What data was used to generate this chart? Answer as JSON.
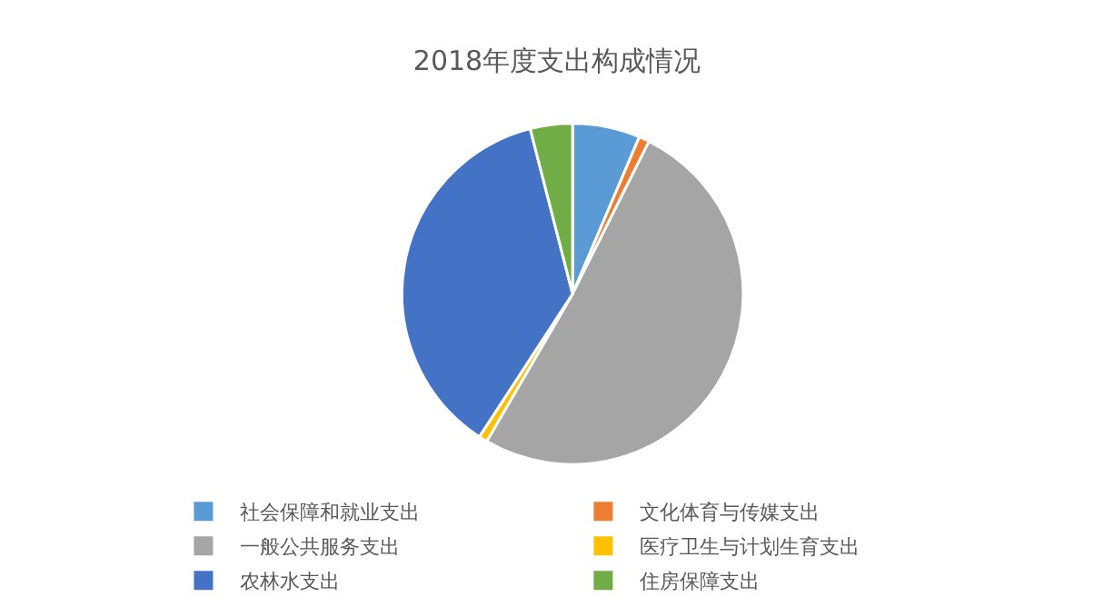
{
  "chart_data": {
    "type": "pie",
    "title": "2018年度支出构成情况",
    "categories": [
      "社会保障和就业支出",
      "文化体育与传媒支出",
      "一般公共服务支出",
      "医疗卫生与计划生育支出",
      "农林水支出",
      "住房保障支出"
    ],
    "values": [
      6.4,
      1.0,
      51.0,
      0.8,
      36.8,
      4.0
    ],
    "colors": [
      "#5b9bd5",
      "#ed7d31",
      "#a5a5a5",
      "#ffc000",
      "#4472c4",
      "#70ad47"
    ],
    "legend": "bottom"
  }
}
